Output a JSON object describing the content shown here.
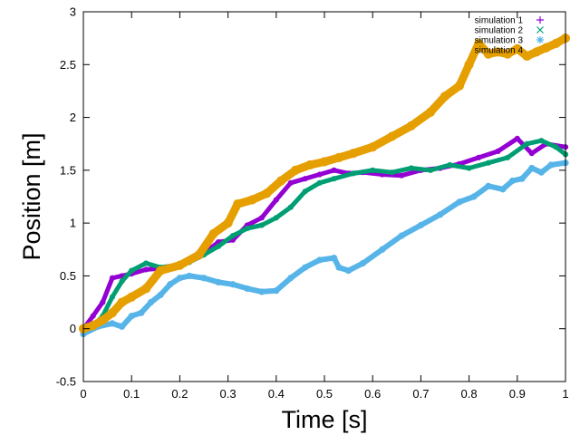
{
  "chart_data": {
    "type": "scatter",
    "title": "",
    "xlabel": "Time [s]",
    "ylabel": "Position [m]",
    "xlim": [
      0,
      1
    ],
    "ylim": [
      -0.5,
      3
    ],
    "x_ticks": [
      0,
      0.1,
      0.2,
      0.3,
      0.4,
      0.5,
      0.6,
      0.7,
      0.8,
      0.9,
      1
    ],
    "x_tick_labels": [
      "0",
      "0.1",
      "0.2",
      "0.3",
      "0.4",
      "0.5",
      "0.6",
      "0.7",
      "0.8",
      "0.9",
      "1"
    ],
    "y_ticks": [
      -0.5,
      0,
      0.5,
      1,
      1.5,
      2,
      2.5,
      3
    ],
    "y_tick_labels": [
      "-0.5",
      "0",
      "0.5",
      "1",
      "1.5",
      "2",
      "2.5",
      "3"
    ],
    "grid": false,
    "legend_position": "top-right",
    "series": [
      {
        "name": "simulation 1",
        "marker": "+",
        "color": "#9400d3",
        "x": [
          0,
          0.02,
          0.04,
          0.06,
          0.08,
          0.1,
          0.13,
          0.16,
          0.2,
          0.24,
          0.28,
          0.31,
          0.34,
          0.37,
          0.4,
          0.43,
          0.46,
          0.49,
          0.52,
          0.55,
          0.58,
          0.62,
          0.66,
          0.7,
          0.74,
          0.78,
          0.82,
          0.86,
          0.9,
          0.93,
          0.96,
          1.0
        ],
        "y": [
          0.0,
          0.12,
          0.25,
          0.48,
          0.5,
          0.52,
          0.56,
          0.57,
          0.6,
          0.68,
          0.82,
          0.84,
          0.98,
          1.05,
          1.22,
          1.38,
          1.42,
          1.46,
          1.5,
          1.47,
          1.48,
          1.46,
          1.45,
          1.5,
          1.52,
          1.56,
          1.62,
          1.68,
          1.8,
          1.66,
          1.75,
          1.72
        ]
      },
      {
        "name": "simulation 2",
        "marker": "×",
        "color": "#009e73",
        "x": [
          0,
          0.02,
          0.04,
          0.06,
          0.08,
          0.1,
          0.13,
          0.16,
          0.19,
          0.22,
          0.25,
          0.28,
          0.31,
          0.34,
          0.37,
          0.4,
          0.43,
          0.46,
          0.49,
          0.52,
          0.56,
          0.6,
          0.64,
          0.68,
          0.72,
          0.76,
          0.8,
          0.84,
          0.88,
          0.92,
          0.95,
          0.98,
          1.0
        ],
        "y": [
          -0.05,
          0.02,
          0.12,
          0.3,
          0.45,
          0.55,
          0.62,
          0.58,
          0.6,
          0.63,
          0.7,
          0.78,
          0.88,
          0.95,
          0.98,
          1.05,
          1.15,
          1.3,
          1.38,
          1.42,
          1.47,
          1.5,
          1.48,
          1.52,
          1.5,
          1.55,
          1.52,
          1.57,
          1.62,
          1.75,
          1.78,
          1.72,
          1.65
        ]
      },
      {
        "name": "simulation 3",
        "marker": "∗",
        "color": "#56b4e9",
        "x": [
          0,
          0.03,
          0.06,
          0.08,
          0.1,
          0.12,
          0.14,
          0.16,
          0.18,
          0.2,
          0.22,
          0.25,
          0.28,
          0.31,
          0.34,
          0.37,
          0.4,
          0.43,
          0.46,
          0.49,
          0.52,
          0.53,
          0.55,
          0.58,
          0.62,
          0.66,
          0.7,
          0.74,
          0.78,
          0.81,
          0.84,
          0.87,
          0.89,
          0.91,
          0.93,
          0.95,
          0.97,
          1.0
        ],
        "y": [
          -0.05,
          0.02,
          0.05,
          0.02,
          0.12,
          0.15,
          0.25,
          0.32,
          0.42,
          0.48,
          0.5,
          0.48,
          0.44,
          0.42,
          0.38,
          0.35,
          0.36,
          0.48,
          0.58,
          0.65,
          0.67,
          0.58,
          0.55,
          0.62,
          0.75,
          0.88,
          0.98,
          1.08,
          1.2,
          1.25,
          1.35,
          1.32,
          1.4,
          1.42,
          1.52,
          1.48,
          1.55,
          1.57
        ]
      },
      {
        "name": "simulation 4",
        "marker": "■",
        "color": "#e69f00",
        "x": [
          0,
          0.02,
          0.04,
          0.06,
          0.08,
          0.1,
          0.13,
          0.16,
          0.2,
          0.24,
          0.27,
          0.3,
          0.32,
          0.35,
          0.38,
          0.41,
          0.44,
          0.47,
          0.5,
          0.53,
          0.56,
          0.6,
          0.64,
          0.68,
          0.72,
          0.75,
          0.78,
          0.8,
          0.82,
          0.84,
          0.86,
          0.88,
          0.9,
          0.92,
          0.94,
          0.96,
          0.98,
          1.0
        ],
        "y": [
          0.0,
          0.03,
          0.08,
          0.15,
          0.25,
          0.3,
          0.38,
          0.55,
          0.6,
          0.7,
          0.9,
          1.0,
          1.18,
          1.22,
          1.28,
          1.4,
          1.5,
          1.55,
          1.58,
          1.62,
          1.66,
          1.72,
          1.82,
          1.92,
          2.05,
          2.2,
          2.3,
          2.5,
          2.7,
          2.6,
          2.62,
          2.6,
          2.65,
          2.58,
          2.62,
          2.66,
          2.7,
          2.75
        ]
      }
    ]
  }
}
